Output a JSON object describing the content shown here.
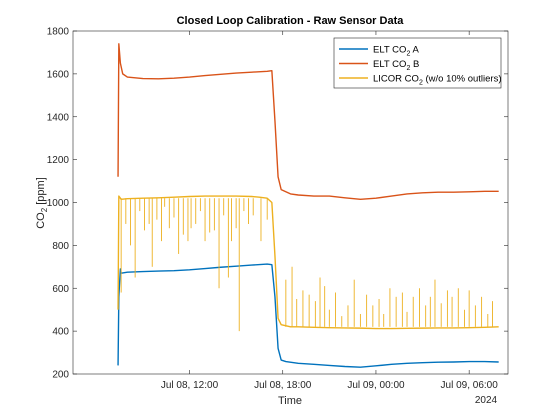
{
  "chart_data": {
    "type": "line",
    "title": "Closed Loop Calibration - Raw Sensor Data",
    "xlabel": "Time",
    "ylabel": "CO2 [ppm]",
    "ylabel_parts": {
      "base": "CO",
      "sub": "2",
      "rest": " [ppm]"
    },
    "x_unit": "hours since 2024-07-08 00:00",
    "xlim": [
      4.5,
      32.5
    ],
    "ylim": [
      200,
      1800
    ],
    "x_ticks": [
      {
        "x": 12,
        "label": "Jul 08, 12:00"
      },
      {
        "x": 18,
        "label": "Jul 08, 18:00"
      },
      {
        "x": 24,
        "label": "Jul 09, 00:00"
      },
      {
        "x": 30,
        "label": "Jul 09, 06:00"
      }
    ],
    "x_secondary_label": "2024",
    "y_ticks": [
      200,
      400,
      600,
      800,
      1000,
      1200,
      1400,
      1600,
      1800
    ],
    "grid": false,
    "legend_position": "top-right",
    "series": [
      {
        "name": "ELT CO2 A",
        "legend": {
          "base": "ELT CO",
          "sub": "2",
          "rest": " A"
        },
        "color": "#0072BD",
        "points": [
          [
            7.4,
            240
          ],
          [
            7.45,
            560
          ],
          [
            7.55,
            690
          ],
          [
            7.6,
            670
          ],
          [
            8,
            675
          ],
          [
            9,
            678
          ],
          [
            10,
            680
          ],
          [
            11,
            682
          ],
          [
            12,
            686
          ],
          [
            13,
            692
          ],
          [
            14,
            698
          ],
          [
            15,
            703
          ],
          [
            16,
            708
          ],
          [
            17,
            713
          ],
          [
            17.3,
            710
          ],
          [
            17.5,
            560
          ],
          [
            17.7,
            320
          ],
          [
            17.9,
            265
          ],
          [
            18.2,
            258
          ],
          [
            19,
            250
          ],
          [
            20,
            245
          ],
          [
            21,
            240
          ],
          [
            22,
            235
          ],
          [
            23,
            232
          ],
          [
            24,
            238
          ],
          [
            25,
            245
          ],
          [
            26,
            250
          ],
          [
            27,
            253
          ],
          [
            28,
            255
          ],
          [
            29,
            256
          ],
          [
            30,
            258
          ],
          [
            31,
            258
          ],
          [
            31.9,
            256
          ]
        ]
      },
      {
        "name": "ELT CO2 B",
        "legend": {
          "base": "ELT CO",
          "sub": "2",
          "rest": " B"
        },
        "color": "#D95319",
        "points": [
          [
            7.4,
            1120
          ],
          [
            7.45,
            1740
          ],
          [
            7.55,
            1650
          ],
          [
            7.7,
            1600
          ],
          [
            8,
            1585
          ],
          [
            9,
            1578
          ],
          [
            10,
            1577
          ],
          [
            11,
            1580
          ],
          [
            12,
            1585
          ],
          [
            13,
            1592
          ],
          [
            14,
            1598
          ],
          [
            15,
            1604
          ],
          [
            16,
            1608
          ],
          [
            17,
            1612
          ],
          [
            17.3,
            1615
          ],
          [
            17.5,
            1380
          ],
          [
            17.7,
            1120
          ],
          [
            17.9,
            1060
          ],
          [
            18.5,
            1040
          ],
          [
            19,
            1035
          ],
          [
            20,
            1030
          ],
          [
            21,
            1030
          ],
          [
            22,
            1022
          ],
          [
            23,
            1015
          ],
          [
            24,
            1020
          ],
          [
            25,
            1030
          ],
          [
            26,
            1040
          ],
          [
            27,
            1045
          ],
          [
            28,
            1048
          ],
          [
            29,
            1048
          ],
          [
            30,
            1050
          ],
          [
            31,
            1052
          ],
          [
            31.9,
            1052
          ]
        ]
      },
      {
        "name": "LICOR CO2 (w/o 10% outliers)",
        "legend": {
          "base": "LICOR CO",
          "sub": "2",
          "rest": " (w/o 10% outliers)"
        },
        "color": "#EDB120",
        "points": [
          [
            7.4,
            500
          ],
          [
            7.45,
            1030
          ],
          [
            7.6,
            1015
          ],
          [
            8,
            1018
          ],
          [
            9,
            1020
          ],
          [
            10,
            1022
          ],
          [
            11,
            1025
          ],
          [
            12,
            1028
          ],
          [
            13,
            1030
          ],
          [
            14,
            1030
          ],
          [
            15,
            1030
          ],
          [
            16,
            1028
          ],
          [
            16.5,
            1025
          ],
          [
            17,
            1020
          ],
          [
            17.3,
            1000
          ],
          [
            17.5,
            750
          ],
          [
            17.7,
            460
          ],
          [
            17.9,
            430
          ],
          [
            18.5,
            420
          ],
          [
            19,
            420
          ],
          [
            20,
            418
          ],
          [
            21,
            416
          ],
          [
            22,
            415
          ],
          [
            23,
            414
          ],
          [
            24,
            412
          ],
          [
            25,
            412
          ],
          [
            26,
            413
          ],
          [
            27,
            414
          ],
          [
            28,
            415
          ],
          [
            29,
            415
          ],
          [
            30,
            416
          ],
          [
            31,
            418
          ],
          [
            31.9,
            420
          ]
        ],
        "spikes": [
          [
            7.6,
            580
          ],
          [
            7.9,
            900
          ],
          [
            8.2,
            800
          ],
          [
            8.5,
            650
          ],
          [
            8.8,
            960
          ],
          [
            9.1,
            870
          ],
          [
            9.4,
            900
          ],
          [
            9.6,
            700
          ],
          [
            9.9,
            920
          ],
          [
            10.2,
            820
          ],
          [
            10.4,
            980
          ],
          [
            10.7,
            880
          ],
          [
            11.0,
            930
          ],
          [
            11.3,
            760
          ],
          [
            11.6,
            850
          ],
          [
            11.9,
            820
          ],
          [
            12.1,
            880
          ],
          [
            12.4,
            900
          ],
          [
            12.7,
            960
          ],
          [
            13.0,
            820
          ],
          [
            13.3,
            860
          ],
          [
            13.6,
            870
          ],
          [
            13.9,
            600
          ],
          [
            14.2,
            940
          ],
          [
            14.5,
            650
          ],
          [
            14.7,
            820
          ],
          [
            15.0,
            880
          ],
          [
            15.2,
            400
          ],
          [
            15.5,
            960
          ],
          [
            15.8,
            900
          ],
          [
            16.1,
            940
          ],
          [
            16.6,
            820
          ],
          [
            17.0,
            920
          ],
          [
            18.2,
            640
          ],
          [
            18.6,
            700
          ],
          [
            18.9,
            550
          ],
          [
            19.3,
            590
          ],
          [
            19.7,
            570
          ],
          [
            20.1,
            540
          ],
          [
            20.4,
            650
          ],
          [
            20.7,
            610
          ],
          [
            21.0,
            500
          ],
          [
            21.4,
            580
          ],
          [
            21.8,
            470
          ],
          [
            22.2,
            520
          ],
          [
            22.6,
            640
          ],
          [
            23.0,
            480
          ],
          [
            23.4,
            570
          ],
          [
            23.8,
            520
          ],
          [
            24.2,
            550
          ],
          [
            24.5,
            480
          ],
          [
            24.9,
            600
          ],
          [
            25.3,
            560
          ],
          [
            25.7,
            580
          ],
          [
            26.0,
            490
          ],
          [
            26.4,
            560
          ],
          [
            26.8,
            600
          ],
          [
            27.2,
            520
          ],
          [
            27.5,
            560
          ],
          [
            27.8,
            640
          ],
          [
            28.2,
            530
          ],
          [
            28.6,
            590
          ],
          [
            28.9,
            560
          ],
          [
            29.3,
            600
          ],
          [
            29.7,
            500
          ],
          [
            30.0,
            590
          ],
          [
            30.4,
            520
          ],
          [
            30.8,
            560
          ],
          [
            31.2,
            480
          ],
          [
            31.5,
            540
          ]
        ]
      }
    ]
  }
}
